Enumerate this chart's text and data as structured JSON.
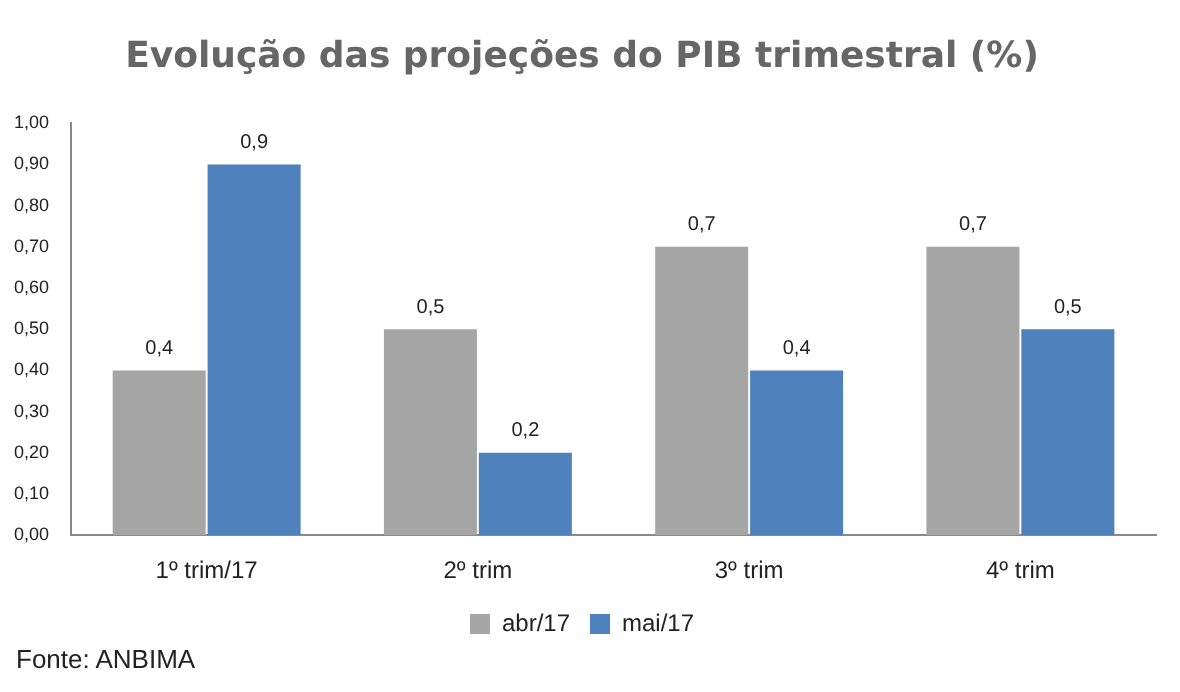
{
  "chart_data": {
    "type": "bar",
    "title": "Evolução das projeções do PIB trimestral (%)",
    "categories": [
      "1º trim/17",
      "2º trim",
      "3º trim",
      "4º trim"
    ],
    "series": [
      {
        "name": "abr/17",
        "color": "#a5a5a5",
        "values": [
          0.4,
          0.5,
          0.7,
          0.7
        ],
        "value_labels": [
          "0,4",
          "0,5",
          "0,7",
          "0,7"
        ]
      },
      {
        "name": "mai/17",
        "color": "#4f81bd",
        "values": [
          0.9,
          0.2,
          0.4,
          0.5
        ],
        "value_labels": [
          "0,9",
          "0,2",
          "0,4",
          "0,5"
        ]
      }
    ],
    "ylim": [
      0,
      1
    ],
    "yticks": [
      {
        "value": 0,
        "label": "0,00"
      },
      {
        "value": 0.1,
        "label": "0,10"
      },
      {
        "value": 0.2,
        "label": "0,20"
      },
      {
        "value": 0.3,
        "label": "0,30"
      },
      {
        "value": 0.4,
        "label": "0,40"
      },
      {
        "value": 0.5,
        "label": "0,50"
      },
      {
        "value": 0.6,
        "label": "0,60"
      },
      {
        "value": 0.7,
        "label": "0,70"
      },
      {
        "value": 0.8,
        "label": "0,80"
      },
      {
        "value": 0.9,
        "label": "0,90"
      },
      {
        "value": 1,
        "label": "1,00"
      }
    ],
    "grid": false,
    "legend": "bottom",
    "annotations": [
      "Fonte: ANBIMA"
    ]
  }
}
